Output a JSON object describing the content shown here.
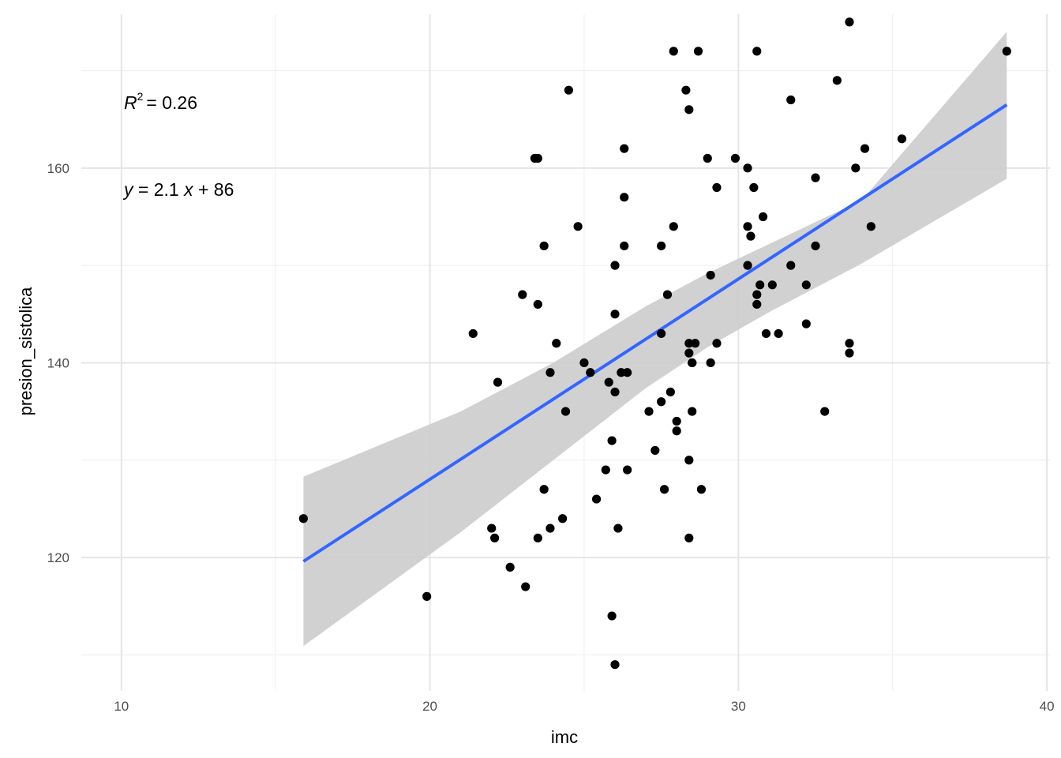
{
  "chart_data": {
    "type": "scatter",
    "title": "",
    "xlabel": "imc",
    "ylabel": "presion_sistolica",
    "xlim": [
      8.7,
      40.1
    ],
    "ylim": [
      106.3,
      175.8
    ],
    "x_ticks": [
      10,
      20,
      30,
      40
    ],
    "y_ticks": [
      120,
      140,
      160
    ],
    "x_tick_labels": [
      "10",
      "20",
      "30",
      "40"
    ],
    "y_tick_labels": [
      "120",
      "140",
      "160"
    ],
    "grid": true,
    "legend": "none",
    "point_color": "#000000",
    "annotations": {
      "r2_text": "= 0.26",
      "r2_symbol": "R",
      "r2_exponent": "2",
      "eq_y": "y",
      "eq_mid": " = 2.1 ",
      "eq_x": "x",
      "eq_rest": " + 86"
    },
    "regression": {
      "slope": 2.1,
      "intercept": 86,
      "line_color": "#3366ff",
      "band_color": "#cccccc",
      "line": [
        [
          15.9,
          119.6
        ],
        [
          38.7,
          166.5
        ]
      ],
      "ci_upper": [
        [
          15.9,
          128.3
        ],
        [
          21,
          135
        ],
        [
          24,
          140
        ],
        [
          27,
          145.8
        ],
        [
          29,
          149.2
        ],
        [
          31,
          152.2
        ],
        [
          34,
          156.7
        ],
        [
          38.7,
          174
        ]
      ],
      "ci_lower": [
        [
          15.9,
          110.9
        ],
        [
          21,
          122.6
        ],
        [
          24,
          130
        ],
        [
          27,
          137.4
        ],
        [
          29,
          141.6
        ],
        [
          31,
          145.2
        ],
        [
          34,
          150.2
        ],
        [
          38.7,
          158.9
        ]
      ]
    },
    "points": [
      [
        15.9,
        124
      ],
      [
        19.9,
        116
      ],
      [
        21.4,
        143
      ],
      [
        22.0,
        123
      ],
      [
        22.1,
        122
      ],
      [
        22.2,
        138
      ],
      [
        22.6,
        119
      ],
      [
        23.0,
        147
      ],
      [
        23.1,
        117
      ],
      [
        23.4,
        161
      ],
      [
        23.5,
        161
      ],
      [
        23.5,
        146
      ],
      [
        23.5,
        122
      ],
      [
        23.7,
        152
      ],
      [
        23.7,
        127
      ],
      [
        23.9,
        139
      ],
      [
        23.9,
        123
      ],
      [
        24.1,
        142
      ],
      [
        24.3,
        124
      ],
      [
        24.4,
        135
      ],
      [
        24.5,
        168
      ],
      [
        24.8,
        154
      ],
      [
        25.0,
        140
      ],
      [
        25.2,
        139
      ],
      [
        25.4,
        126
      ],
      [
        25.7,
        129
      ],
      [
        25.8,
        138
      ],
      [
        25.9,
        132
      ],
      [
        25.9,
        114
      ],
      [
        26.0,
        150
      ],
      [
        26.0,
        145
      ],
      [
        26.0,
        137
      ],
      [
        26.0,
        109
      ],
      [
        26.1,
        123
      ],
      [
        26.2,
        139
      ],
      [
        26.3,
        162
      ],
      [
        26.3,
        157
      ],
      [
        26.3,
        152
      ],
      [
        26.4,
        139
      ],
      [
        26.4,
        129
      ],
      [
        27.1,
        135
      ],
      [
        27.3,
        131
      ],
      [
        27.5,
        152
      ],
      [
        27.5,
        143
      ],
      [
        27.5,
        136
      ],
      [
        27.6,
        127
      ],
      [
        27.7,
        147
      ],
      [
        27.8,
        137
      ],
      [
        27.9,
        172
      ],
      [
        27.9,
        154
      ],
      [
        28.0,
        134
      ],
      [
        28.0,
        133
      ],
      [
        28.3,
        168
      ],
      [
        28.4,
        166
      ],
      [
        28.4,
        142
      ],
      [
        28.4,
        141
      ],
      [
        28.4,
        130
      ],
      [
        28.4,
        122
      ],
      [
        28.5,
        140
      ],
      [
        28.5,
        140
      ],
      [
        28.5,
        135
      ],
      [
        28.6,
        142
      ],
      [
        28.7,
        172
      ],
      [
        28.8,
        127
      ],
      [
        29.0,
        161
      ],
      [
        29.1,
        149
      ],
      [
        29.1,
        140
      ],
      [
        29.3,
        142
      ],
      [
        29.3,
        158
      ],
      [
        29.9,
        161
      ],
      [
        30.3,
        160
      ],
      [
        30.3,
        154
      ],
      [
        30.3,
        150
      ],
      [
        30.4,
        153
      ],
      [
        30.5,
        158
      ],
      [
        30.6,
        172
      ],
      [
        30.6,
        147
      ],
      [
        30.6,
        146
      ],
      [
        30.7,
        148
      ],
      [
        30.8,
        155
      ],
      [
        30.9,
        143
      ],
      [
        31.1,
        148
      ],
      [
        31.3,
        143
      ],
      [
        31.7,
        167
      ],
      [
        31.7,
        150
      ],
      [
        32.2,
        148
      ],
      [
        32.2,
        144
      ],
      [
        32.5,
        159
      ],
      [
        32.5,
        152
      ],
      [
        32.8,
        135
      ],
      [
        33.2,
        169
      ],
      [
        33.6,
        175
      ],
      [
        33.6,
        142
      ],
      [
        33.6,
        141
      ],
      [
        33.8,
        160
      ],
      [
        34.1,
        162
      ],
      [
        34.3,
        154
      ],
      [
        35.3,
        163
      ],
      [
        38.7,
        172
      ]
    ]
  }
}
